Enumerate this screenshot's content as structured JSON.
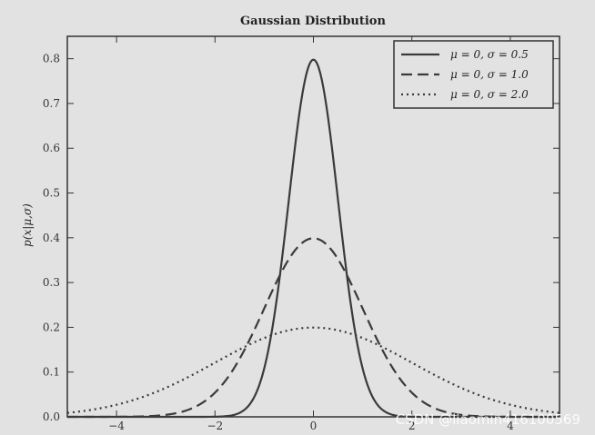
{
  "chart_data": {
    "type": "line",
    "title": "Gaussian Distribution",
    "xlabel": "",
    "ylabel": "p(x|μ,σ)",
    "xlim": [
      -5,
      5
    ],
    "ylim": [
      0,
      0.85
    ],
    "xticks": [
      -4,
      -2,
      0,
      2,
      4
    ],
    "xtick_labels": [
      "−4",
      "−2",
      "0",
      "2",
      "4"
    ],
    "yticks": [
      0,
      0.1,
      0.2,
      0.3,
      0.4,
      0.5,
      0.6,
      0.7,
      0.8
    ],
    "ytick_labels": [
      "0.0",
      "0.1",
      "0.2",
      "0.3",
      "0.4",
      "0.5",
      "0.6",
      "0.7",
      "0.8"
    ],
    "grid": false,
    "legend_position": "top-right",
    "series": [
      {
        "name": "μ = 0,  σ = 0.5",
        "mu": 0,
        "sigma": 0.5,
        "style": "solid"
      },
      {
        "name": "μ = 0,  σ = 1.0",
        "mu": 0,
        "sigma": 1.0,
        "style": "dashed"
      },
      {
        "name": "μ = 0,  σ = 2.0",
        "mu": 0,
        "sigma": 2.0,
        "style": "dotted"
      }
    ],
    "line_color": "#3a3a3a",
    "background_color": "#e2e2e2"
  },
  "watermark": "CSDN @liaomin416100569"
}
